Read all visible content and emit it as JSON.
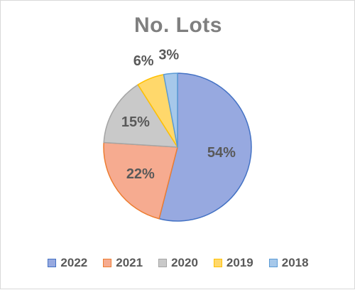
{
  "chart_data": {
    "type": "pie",
    "title": "No. Lots",
    "categories": [
      "2022",
      "2021",
      "2020",
      "2019",
      "2018"
    ],
    "values": [
      54,
      22,
      15,
      6,
      3
    ],
    "labels": [
      "54%",
      "22%",
      "15%",
      "6%",
      "3%"
    ],
    "colors": [
      "#97a9e0",
      "#f6ab90",
      "#c9c9c9",
      "#ffd86b",
      "#a6c8ea"
    ],
    "edge_colors": [
      "#4472c4",
      "#ed7d31",
      "#a5a5a5",
      "#ffc000",
      "#5b9bd5"
    ],
    "legend_position": "bottom",
    "start_angle": "12 o'clock",
    "direction": "clockwise"
  }
}
